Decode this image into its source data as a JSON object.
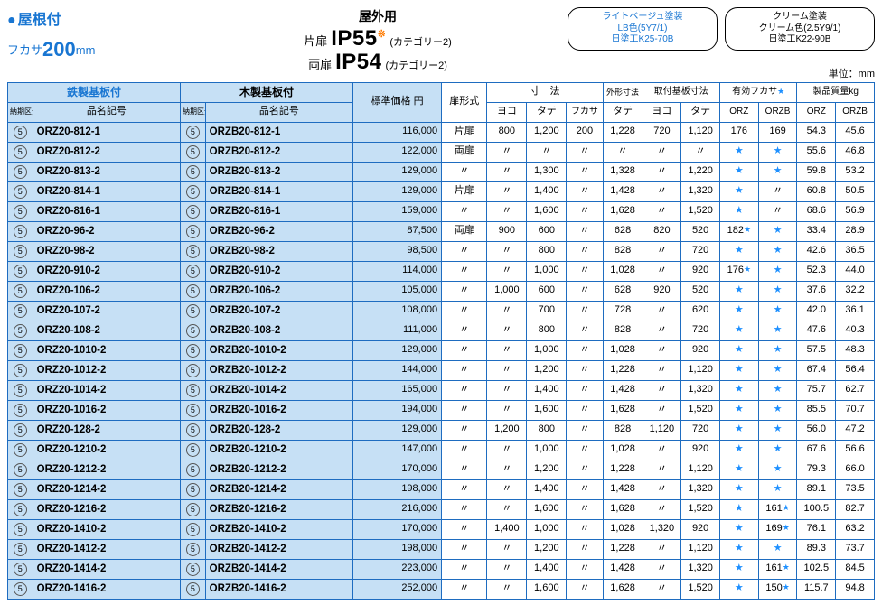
{
  "header": {
    "roof_title": "屋根付",
    "depth_prefix": "フカサ",
    "depth_value": "200",
    "depth_unit": "mm",
    "outdoor_label": "屋外用",
    "ip_single_label": "片扉",
    "ip_single_value": "IP55",
    "ip_double_label": "両扉",
    "ip_double_value": "IP54",
    "ip_star": "※",
    "ip_cat": "(カテゴリー2)",
    "badge_lb_title": "ライトベージュ塗装",
    "badge_lb_line2": "LB色(5Y7/1)",
    "badge_lb_line3": "日塗工K25-70B",
    "badge_cr_title": "クリーム塗装",
    "badge_cr_line2": "クリーム色(2.5Y9/1)",
    "badge_cr_line3": "日塗工K22-90B",
    "unit_label": "単位：mm"
  },
  "colhdr": {
    "steel": "鉄製基板付",
    "wood": "木製基板付",
    "k": "納期区分",
    "pn": "品名記号",
    "price": "標準価格 円",
    "door": "扉形式",
    "dims": "寸　法",
    "dims_yoko": "ヨコ",
    "dims_tate": "タテ",
    "dims_fukasa": "フカサ",
    "ext": "外形寸法",
    "ext_tate": "タテ",
    "board": "取付基板寸法",
    "board_yoko": "ヨコ",
    "board_tate": "タテ",
    "eff": "有効フカサ",
    "eff_star": "★",
    "eff_orz": "ORZ",
    "eff_orzb": "ORZB",
    "weight": "製品質量kg",
    "wt_orz": "ORZ",
    "wt_orzb": "ORZB"
  },
  "ditto": "〃",
  "star": "★",
  "k_mark": "5",
  "colors": {
    "accent_blue": "#1976d2",
    "row_blue": "#c6e0f5",
    "border_blue": "#1e6cc0",
    "star_blue": "#1e90ff",
    "orange": "#ff7a00"
  },
  "rows": [
    {
      "pn1": "ORZ20-812-1",
      "pn2": "ORZB20-812-1",
      "price": "116,000",
      "door": "片扉",
      "yoko": "800",
      "tate": "1,200",
      "fukasa": "200",
      "ext_tate": "1,228",
      "b_yoko": "720",
      "b_tate": "1,120",
      "eff_orz": "176",
      "eff_orzb": "169",
      "wt_orz": "54.3",
      "wt_orzb": "45.6"
    },
    {
      "pn1": "ORZ20-812-2",
      "pn2": "ORZB20-812-2",
      "price": "122,000",
      "door": "両扉",
      "yoko": "〃",
      "tate": "〃",
      "fukasa": "〃",
      "ext_tate": "〃",
      "b_yoko": "〃",
      "b_tate": "〃",
      "eff_orz": "★",
      "eff_orzb": "★",
      "wt_orz": "55.6",
      "wt_orzb": "46.8"
    },
    {
      "pn1": "ORZ20-813-2",
      "pn2": "ORZB20-813-2",
      "price": "129,000",
      "door": "〃",
      "yoko": "〃",
      "tate": "1,300",
      "fukasa": "〃",
      "ext_tate": "1,328",
      "b_yoko": "〃",
      "b_tate": "1,220",
      "eff_orz": "★",
      "eff_orzb": "★",
      "wt_orz": "59.8",
      "wt_orzb": "53.2"
    },
    {
      "pn1": "ORZ20-814-1",
      "pn2": "ORZB20-814-1",
      "price": "129,000",
      "door": "片扉",
      "yoko": "〃",
      "tate": "1,400",
      "fukasa": "〃",
      "ext_tate": "1,428",
      "b_yoko": "〃",
      "b_tate": "1,320",
      "eff_orz": "★",
      "eff_orzb": "〃",
      "wt_orz": "60.8",
      "wt_orzb": "50.5"
    },
    {
      "pn1": "ORZ20-816-1",
      "pn2": "ORZB20-816-1",
      "price": "159,000",
      "door": "〃",
      "yoko": "〃",
      "tate": "1,600",
      "fukasa": "〃",
      "ext_tate": "1,628",
      "b_yoko": "〃",
      "b_tate": "1,520",
      "eff_orz": "★",
      "eff_orzb": "〃",
      "wt_orz": "68.6",
      "wt_orzb": "56.9"
    },
    {
      "pn1": "ORZ20-96-2",
      "pn2": "ORZB20-96-2",
      "price": "87,500",
      "door": "両扉",
      "yoko": "900",
      "tate": "600",
      "fukasa": "〃",
      "ext_tate": "628",
      "b_yoko": "820",
      "b_tate": "520",
      "eff_orz": "182★",
      "eff_orzb": "★",
      "wt_orz": "33.4",
      "wt_orzb": "28.9"
    },
    {
      "pn1": "ORZ20-98-2",
      "pn2": "ORZB20-98-2",
      "price": "98,500",
      "door": "〃",
      "yoko": "〃",
      "tate": "800",
      "fukasa": "〃",
      "ext_tate": "828",
      "b_yoko": "〃",
      "b_tate": "720",
      "eff_orz": "★",
      "eff_orzb": "★",
      "wt_orz": "42.6",
      "wt_orzb": "36.5"
    },
    {
      "pn1": "ORZ20-910-2",
      "pn2": "ORZB20-910-2",
      "price": "114,000",
      "door": "〃",
      "yoko": "〃",
      "tate": "1,000",
      "fukasa": "〃",
      "ext_tate": "1,028",
      "b_yoko": "〃",
      "b_tate": "920",
      "eff_orz": "176★",
      "eff_orzb": "★",
      "wt_orz": "52.3",
      "wt_orzb": "44.0"
    },
    {
      "pn1": "ORZ20-106-2",
      "pn2": "ORZB20-106-2",
      "price": "105,000",
      "door": "〃",
      "yoko": "1,000",
      "tate": "600",
      "fukasa": "〃",
      "ext_tate": "628",
      "b_yoko": "920",
      "b_tate": "520",
      "eff_orz": "★",
      "eff_orzb": "★",
      "wt_orz": "37.6",
      "wt_orzb": "32.2"
    },
    {
      "pn1": "ORZ20-107-2",
      "pn2": "ORZB20-107-2",
      "price": "108,000",
      "door": "〃",
      "yoko": "〃",
      "tate": "700",
      "fukasa": "〃",
      "ext_tate": "728",
      "b_yoko": "〃",
      "b_tate": "620",
      "eff_orz": "★",
      "eff_orzb": "★",
      "wt_orz": "42.0",
      "wt_orzb": "36.1"
    },
    {
      "pn1": "ORZ20-108-2",
      "pn2": "ORZB20-108-2",
      "price": "111,000",
      "door": "〃",
      "yoko": "〃",
      "tate": "800",
      "fukasa": "〃",
      "ext_tate": "828",
      "b_yoko": "〃",
      "b_tate": "720",
      "eff_orz": "★",
      "eff_orzb": "★",
      "wt_orz": "47.6",
      "wt_orzb": "40.3"
    },
    {
      "pn1": "ORZ20-1010-2",
      "pn2": "ORZB20-1010-2",
      "price": "129,000",
      "door": "〃",
      "yoko": "〃",
      "tate": "1,000",
      "fukasa": "〃",
      "ext_tate": "1,028",
      "b_yoko": "〃",
      "b_tate": "920",
      "eff_orz": "★",
      "eff_orzb": "★",
      "wt_orz": "57.5",
      "wt_orzb": "48.3"
    },
    {
      "pn1": "ORZ20-1012-2",
      "pn2": "ORZB20-1012-2",
      "price": "144,000",
      "door": "〃",
      "yoko": "〃",
      "tate": "1,200",
      "fukasa": "〃",
      "ext_tate": "1,228",
      "b_yoko": "〃",
      "b_tate": "1,120",
      "eff_orz": "★",
      "eff_orzb": "★",
      "wt_orz": "67.4",
      "wt_orzb": "56.4"
    },
    {
      "pn1": "ORZ20-1014-2",
      "pn2": "ORZB20-1014-2",
      "price": "165,000",
      "door": "〃",
      "yoko": "〃",
      "tate": "1,400",
      "fukasa": "〃",
      "ext_tate": "1,428",
      "b_yoko": "〃",
      "b_tate": "1,320",
      "eff_orz": "★",
      "eff_orzb": "★",
      "wt_orz": "75.7",
      "wt_orzb": "62.7"
    },
    {
      "pn1": "ORZ20-1016-2",
      "pn2": "ORZB20-1016-2",
      "price": "194,000",
      "door": "〃",
      "yoko": "〃",
      "tate": "1,600",
      "fukasa": "〃",
      "ext_tate": "1,628",
      "b_yoko": "〃",
      "b_tate": "1,520",
      "eff_orz": "★",
      "eff_orzb": "★",
      "wt_orz": "85.5",
      "wt_orzb": "70.7"
    },
    {
      "pn1": "ORZ20-128-2",
      "pn2": "ORZB20-128-2",
      "price": "129,000",
      "door": "〃",
      "yoko": "1,200",
      "tate": "800",
      "fukasa": "〃",
      "ext_tate": "828",
      "b_yoko": "1,120",
      "b_tate": "720",
      "eff_orz": "★",
      "eff_orzb": "★",
      "wt_orz": "56.0",
      "wt_orzb": "47.2"
    },
    {
      "pn1": "ORZ20-1210-2",
      "pn2": "ORZB20-1210-2",
      "price": "147,000",
      "door": "〃",
      "yoko": "〃",
      "tate": "1,000",
      "fukasa": "〃",
      "ext_tate": "1,028",
      "b_yoko": "〃",
      "b_tate": "920",
      "eff_orz": "★",
      "eff_orzb": "★",
      "wt_orz": "67.6",
      "wt_orzb": "56.6"
    },
    {
      "pn1": "ORZ20-1212-2",
      "pn2": "ORZB20-1212-2",
      "price": "170,000",
      "door": "〃",
      "yoko": "〃",
      "tate": "1,200",
      "fukasa": "〃",
      "ext_tate": "1,228",
      "b_yoko": "〃",
      "b_tate": "1,120",
      "eff_orz": "★",
      "eff_orzb": "★",
      "wt_orz": "79.3",
      "wt_orzb": "66.0"
    },
    {
      "pn1": "ORZ20-1214-2",
      "pn2": "ORZB20-1214-2",
      "price": "198,000",
      "door": "〃",
      "yoko": "〃",
      "tate": "1,400",
      "fukasa": "〃",
      "ext_tate": "1,428",
      "b_yoko": "〃",
      "b_tate": "1,320",
      "eff_orz": "★",
      "eff_orzb": "★",
      "wt_orz": "89.1",
      "wt_orzb": "73.5"
    },
    {
      "pn1": "ORZ20-1216-2",
      "pn2": "ORZB20-1216-2",
      "price": "216,000",
      "door": "〃",
      "yoko": "〃",
      "tate": "1,600",
      "fukasa": "〃",
      "ext_tate": "1,628",
      "b_yoko": "〃",
      "b_tate": "1,520",
      "eff_orz": "★",
      "eff_orzb": "161★",
      "wt_orz": "100.5",
      "wt_orzb": "82.7"
    },
    {
      "pn1": "ORZ20-1410-2",
      "pn2": "ORZB20-1410-2",
      "price": "170,000",
      "door": "〃",
      "yoko": "1,400",
      "tate": "1,000",
      "fukasa": "〃",
      "ext_tate": "1,028",
      "b_yoko": "1,320",
      "b_tate": "920",
      "eff_orz": "★",
      "eff_orzb": "169★",
      "wt_orz": "76.1",
      "wt_orzb": "63.2"
    },
    {
      "pn1": "ORZ20-1412-2",
      "pn2": "ORZB20-1412-2",
      "price": "198,000",
      "door": "〃",
      "yoko": "〃",
      "tate": "1,200",
      "fukasa": "〃",
      "ext_tate": "1,228",
      "b_yoko": "〃",
      "b_tate": "1,120",
      "eff_orz": "★",
      "eff_orzb": "★",
      "wt_orz": "89.3",
      "wt_orzb": "73.7"
    },
    {
      "pn1": "ORZ20-1414-2",
      "pn2": "ORZB20-1414-2",
      "price": "223,000",
      "door": "〃",
      "yoko": "〃",
      "tate": "1,400",
      "fukasa": "〃",
      "ext_tate": "1,428",
      "b_yoko": "〃",
      "b_tate": "1,320",
      "eff_orz": "★",
      "eff_orzb": "161★",
      "wt_orz": "102.5",
      "wt_orzb": "84.5"
    },
    {
      "pn1": "ORZ20-1416-2",
      "pn2": "ORZB20-1416-2",
      "price": "252,000",
      "door": "〃",
      "yoko": "〃",
      "tate": "1,600",
      "fukasa": "〃",
      "ext_tate": "1,628",
      "b_yoko": "〃",
      "b_tate": "1,520",
      "eff_orz": "★",
      "eff_orzb": "150★",
      "wt_orz": "115.7",
      "wt_orzb": "94.8"
    }
  ]
}
